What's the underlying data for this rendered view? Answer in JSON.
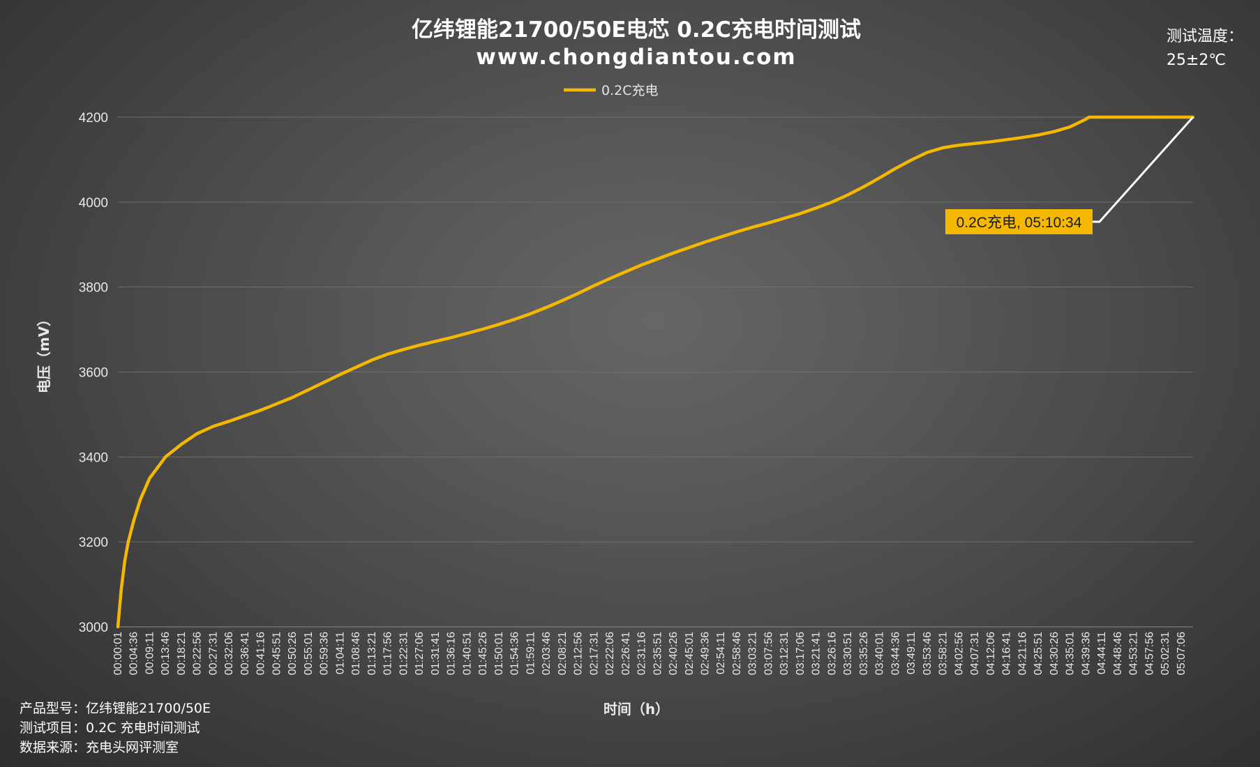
{
  "chart_data": {
    "type": "line",
    "title": "亿纬锂能21700/50E电芯 0.2C充电时间测试",
    "subtitle": "www.chongdiantou.com",
    "legend": "top",
    "series": [
      {
        "name": "0.2C充电",
        "color": "#f5b800",
        "points": [
          [
            "00:00:01",
            3000
          ],
          [
            "00:00:20",
            3030
          ],
          [
            "00:01:00",
            3090
          ],
          [
            "00:02:00",
            3155
          ],
          [
            "00:03:00",
            3200
          ],
          [
            "00:04:36",
            3250
          ],
          [
            "00:06:30",
            3300
          ],
          [
            "00:09:11",
            3350
          ],
          [
            "00:13:46",
            3400
          ],
          [
            "00:18:21",
            3430
          ],
          [
            "00:22:56",
            3455
          ],
          [
            "00:27:31",
            3472
          ],
          [
            "00:32:06",
            3484
          ],
          [
            "00:36:41",
            3497
          ],
          [
            "00:41:16",
            3510
          ],
          [
            "00:45:51",
            3525
          ],
          [
            "00:50:26",
            3540
          ],
          [
            "00:55:01",
            3558
          ],
          [
            "00:59:36",
            3576
          ],
          [
            "01:04:11",
            3594
          ],
          [
            "01:08:46",
            3611
          ],
          [
            "01:13:21",
            3628
          ],
          [
            "01:17:56",
            3642
          ],
          [
            "01:22:31",
            3653
          ],
          [
            "01:27:06",
            3663
          ],
          [
            "01:31:41",
            3672
          ],
          [
            "01:36:16",
            3681
          ],
          [
            "01:40:51",
            3691
          ],
          [
            "01:45:26",
            3701
          ],
          [
            "01:50:01",
            3712
          ],
          [
            "01:54:36",
            3724
          ],
          [
            "01:59:11",
            3737
          ],
          [
            "02:03:46",
            3752
          ],
          [
            "02:08:21",
            3768
          ],
          [
            "02:12:56",
            3785
          ],
          [
            "02:17:31",
            3803
          ],
          [
            "02:22:06",
            3820
          ],
          [
            "02:26:41",
            3836
          ],
          [
            "02:31:16",
            3852
          ],
          [
            "02:35:51",
            3866
          ],
          [
            "02:40:26",
            3880
          ],
          [
            "02:45:01",
            3893
          ],
          [
            "02:49:36",
            3906
          ],
          [
            "02:54:11",
            3918
          ],
          [
            "02:58:46",
            3930
          ],
          [
            "03:03:21",
            3941
          ],
          [
            "03:07:56",
            3951
          ],
          [
            "03:12:31",
            3962
          ],
          [
            "03:17:06",
            3973
          ],
          [
            "03:21:41",
            3986
          ],
          [
            "03:26:16",
            4000
          ],
          [
            "03:30:51",
            4017
          ],
          [
            "03:35:26",
            4036
          ],
          [
            "03:40:01",
            4057
          ],
          [
            "03:44:36",
            4079
          ],
          [
            "03:49:11",
            4099
          ],
          [
            "03:53:46",
            4117
          ],
          [
            "03:58:21",
            4128
          ],
          [
            "04:02:56",
            4134
          ],
          [
            "04:07:31",
            4138
          ],
          [
            "04:12:06",
            4142
          ],
          [
            "04:16:41",
            4147
          ],
          [
            "04:21:16",
            4152
          ],
          [
            "04:25:51",
            4158
          ],
          [
            "04:30:26",
            4166
          ],
          [
            "04:35:01",
            4177
          ],
          [
            "04:39:36",
            4195
          ],
          [
            "04:40:30",
            4200
          ],
          [
            "04:44:11",
            4200
          ],
          [
            "04:48:46",
            4200
          ],
          [
            "04:53:21",
            4200
          ],
          [
            "04:57:56",
            4200
          ],
          [
            "05:02:31",
            4200
          ],
          [
            "05:07:06",
            4200
          ],
          [
            "05:10:34",
            4200
          ]
        ]
      }
    ],
    "x_label": "时间（h）",
    "y_label": "电压（mV）",
    "x_ticks": [
      "00:00:01",
      "00:04:36",
      "00:09:11",
      "00:13:46",
      "00:18:21",
      "00:22:56",
      "00:27:31",
      "00:32:06",
      "00:36:41",
      "00:41:16",
      "00:45:51",
      "00:50:26",
      "00:55:01",
      "00:59:36",
      "01:04:11",
      "01:08:46",
      "01:13:21",
      "01:17:56",
      "01:22:31",
      "01:27:06",
      "01:31:41",
      "01:36:16",
      "01:40:51",
      "01:45:26",
      "01:50:01",
      "01:54:36",
      "01:59:11",
      "02:03:46",
      "02:08:21",
      "02:12:56",
      "02:17:31",
      "02:22:06",
      "02:26:41",
      "02:31:16",
      "02:35:51",
      "02:40:26",
      "02:45:01",
      "02:49:36",
      "02:54:11",
      "02:58:46",
      "03:03:21",
      "03:07:56",
      "03:12:31",
      "03:17:06",
      "03:21:41",
      "03:26:16",
      "03:30:51",
      "03:35:26",
      "03:40:01",
      "03:44:36",
      "03:49:11",
      "03:53:46",
      "03:58:21",
      "04:02:56",
      "04:07:31",
      "04:12:06",
      "04:16:41",
      "04:21:16",
      "04:25:51",
      "04:30:26",
      "04:35:01",
      "04:39:36",
      "04:44:11",
      "04:48:46",
      "04:53:21",
      "04:57:56",
      "05:02:31",
      "05:07:06"
    ],
    "x_range": [
      "00:00:01",
      "05:10:34"
    ],
    "y_ticks": [
      3000,
      3200,
      3400,
      3600,
      3800,
      4000,
      4200
    ],
    "ylim": [
      3000,
      4200
    ],
    "grid": "horizontal",
    "annotation": {
      "text": "0.2C充电, 05:10:34",
      "point": [
        "05:10:34",
        4200
      ],
      "box_color": "#f5b800",
      "leader_color": "#ffffff"
    }
  },
  "header": {
    "temperature_label": "测试温度：",
    "temperature_value": "25±2℃"
  },
  "footer": {
    "lines": [
      "产品型号：亿纬锂能21700/50E",
      "测试项目：0.2C 充电时间测试",
      "数据来源：充电头网评测室"
    ]
  }
}
